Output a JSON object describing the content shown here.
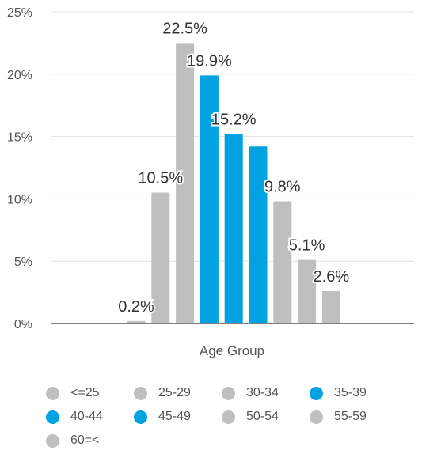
{
  "chart_data": {
    "type": "bar",
    "title": "",
    "xlabel": "Age Group",
    "ylabel": "",
    "ylim": [
      0,
      25
    ],
    "yticks": [
      0,
      5,
      10,
      15,
      20,
      25
    ],
    "ytick_labels": [
      "0%",
      "5%",
      "10%",
      "15%",
      "20%",
      "25%"
    ],
    "categories": [
      "<=25",
      "25-29",
      "30-34",
      "35-39",
      "40-44",
      "45-49",
      "50-54",
      "55-59",
      "60=<"
    ],
    "values": [
      0.2,
      10.5,
      22.5,
      19.9,
      15.2,
      14.2,
      9.8,
      5.1,
      2.6
    ],
    "data_labels": [
      "0.2%",
      "10.5%",
      "22.5%",
      "19.9%",
      "15.2%",
      "",
      "9.8%",
      "5.1%",
      "2.6%"
    ],
    "colors": [
      "#bfbfbf",
      "#bfbfbf",
      "#bfbfbf",
      "#00a2e1",
      "#00a2e1",
      "#00a2e1",
      "#bfbfbf",
      "#bfbfbf",
      "#bfbfbf"
    ],
    "grid": true,
    "legend_position": "bottom"
  }
}
